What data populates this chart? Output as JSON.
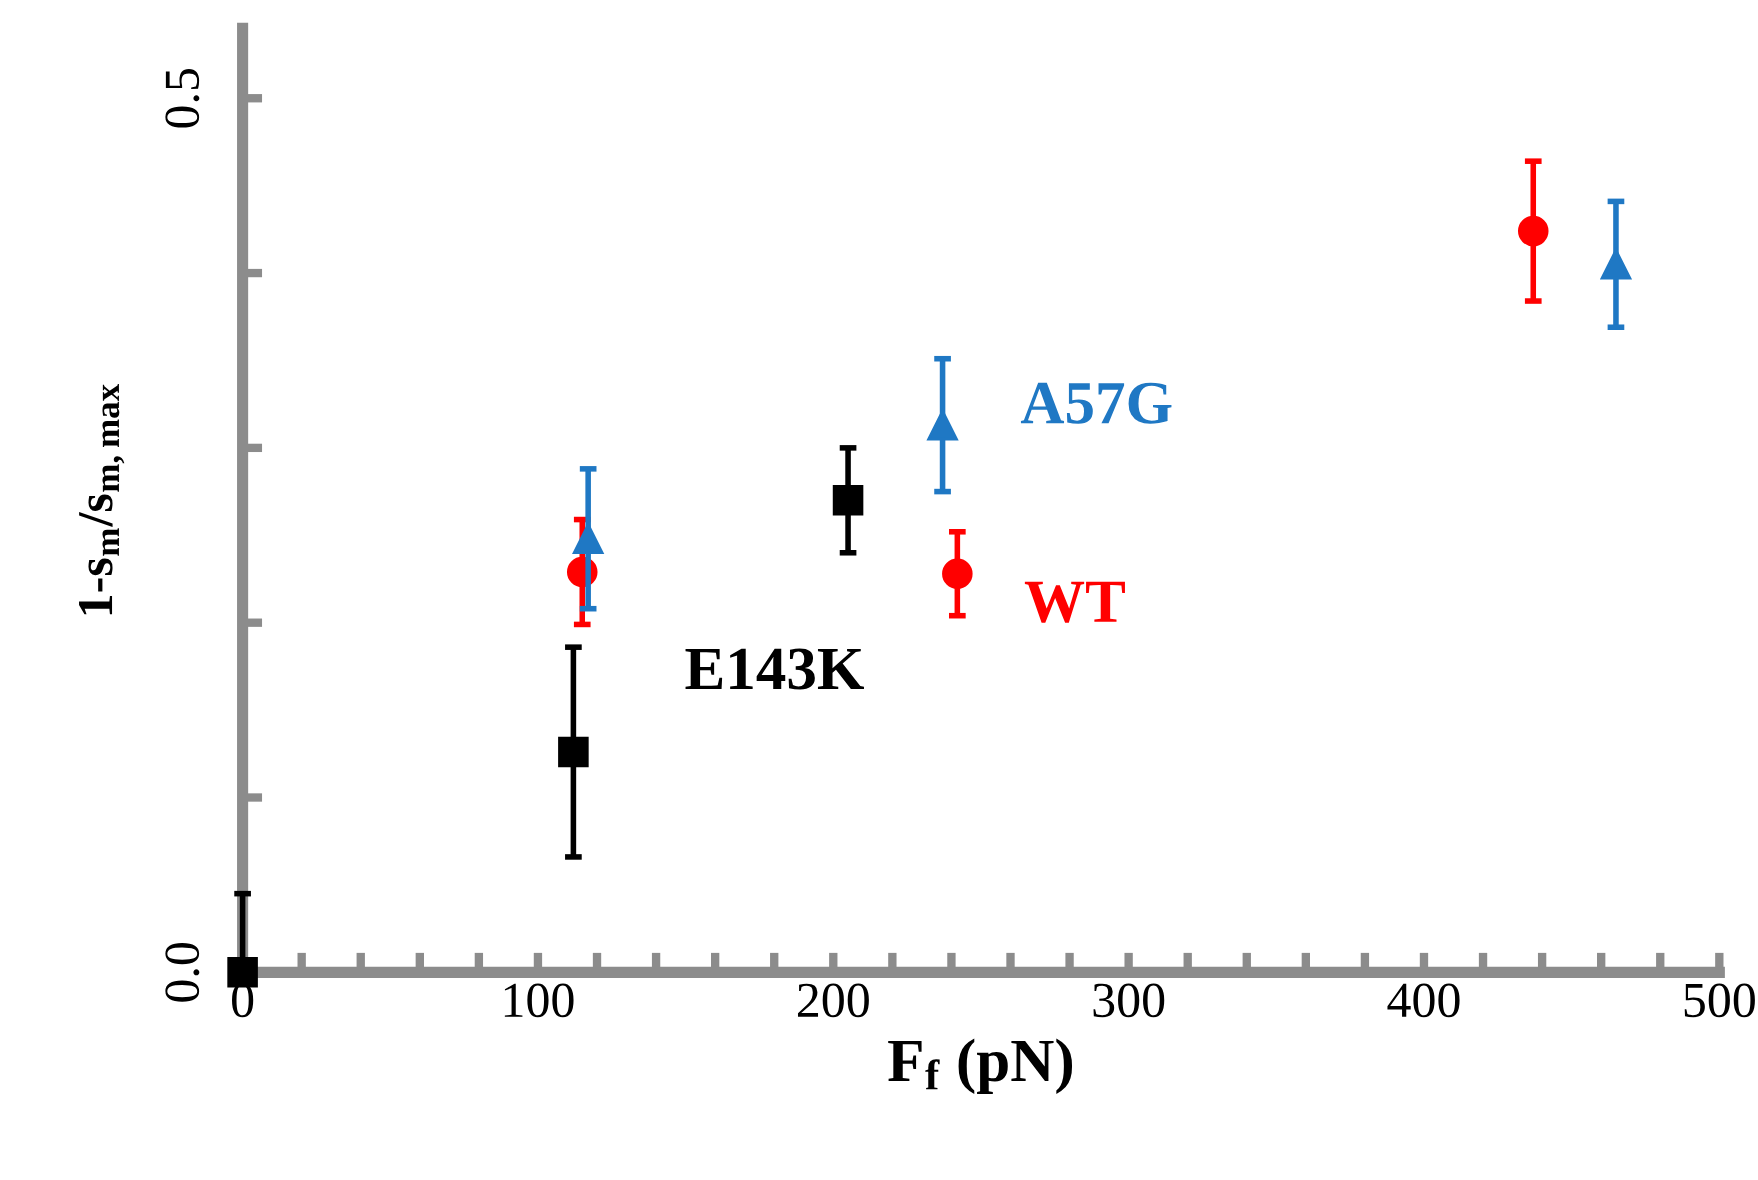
{
  "chart_data": {
    "type": "scatter",
    "xlabel": "F$_{f}$ (pN)",
    "ylabel": "1-s$_{m}$/s$_{m,max}$",
    "xlim": [
      0,
      500
    ],
    "ylim": [
      0,
      0.54
    ],
    "xticks": [
      0,
      {
        "value": 20,
        "label": null
      },
      {
        "value": 40,
        "label": null
      },
      {
        "value": 60,
        "label": null
      },
      {
        "value": 80,
        "label": null
      },
      100,
      {
        "value": 120,
        "label": null
      },
      {
        "value": 140,
        "label": null
      },
      {
        "value": 160,
        "label": null
      },
      {
        "value": 180,
        "label": null
      },
      200,
      {
        "value": 220,
        "label": null
      },
      {
        "value": 240,
        "label": null
      },
      {
        "value": 260,
        "label": null
      },
      {
        "value": 280,
        "label": null
      },
      300,
      {
        "value": 320,
        "label": null
      },
      {
        "value": 340,
        "label": null
      },
      {
        "value": 360,
        "label": null
      },
      {
        "value": 380,
        "label": null
      },
      400,
      {
        "value": 420,
        "label": null
      },
      {
        "value": 440,
        "label": null
      },
      {
        "value": 460,
        "label": null
      },
      {
        "value": 480,
        "label": null
      },
      500
    ],
    "yticks": [
      {
        "value": 0,
        "label": "0.0"
      },
      {
        "value": 0.1,
        "label": null
      },
      {
        "value": 0.2,
        "label": null
      },
      {
        "value": 0.3,
        "label": null
      },
      {
        "value": 0.4,
        "label": null
      },
      0.5
    ],
    "grid": false,
    "legend": false,
    "series": [
      {
        "name": "WT",
        "color": "#ff0000",
        "marker": "circle",
        "x": [
          115,
          242,
          437
        ],
        "values": [
          0.229,
          0.228,
          0.424
        ],
        "errors": [
          0.03,
          0.024,
          0.04
        ]
      },
      {
        "name": "A57G",
        "color": "#1f78c4",
        "marker": "triangle",
        "x": [
          117,
          237,
          465
        ],
        "values": [
          0.248,
          0.313,
          0.405
        ],
        "errors": [
          0.04,
          0.038,
          0.036
        ]
      },
      {
        "name": "E143K",
        "color": "#000000",
        "marker": "square",
        "x": [
          0,
          112,
          205
        ],
        "values": [
          0,
          0.126,
          0.27
        ],
        "errors": [
          [
            0,
            0.045
          ],
          0.06,
          0.03
        ]
      }
    ]
  }
}
